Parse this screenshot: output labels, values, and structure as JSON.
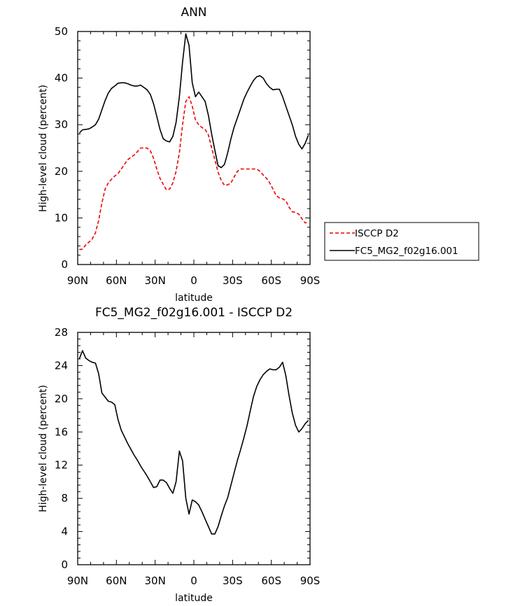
{
  "chart_data": [
    {
      "type": "line",
      "title": "ANN",
      "xlabel": "latitude",
      "ylabel": "High-level cloud (percent)",
      "xlim": [
        90,
        -90
      ],
      "ylim": [
        0,
        50
      ],
      "xticks": [
        90,
        60,
        30,
        0,
        -30,
        -60,
        -90
      ],
      "xtick_labels": [
        "90N",
        "60N",
        "30N",
        "0",
        "30S",
        "60S",
        "90S"
      ],
      "yticks": [
        0,
        10,
        20,
        30,
        40,
        50
      ],
      "ytick_labels": [
        "0",
        "10",
        "20",
        "30",
        "40",
        "50"
      ],
      "legend": "right",
      "series": [
        {
          "name": "ISCCP D2",
          "color": "#ee0000",
          "dash": "dashed",
          "x": [
            88.75,
            86.25,
            83.75,
            81.25,
            78.75,
            76.25,
            73.75,
            71.25,
            68.75,
            66.25,
            63.75,
            61.25,
            58.75,
            56.25,
            53.75,
            51.25,
            48.75,
            46.25,
            43.75,
            41.25,
            38.75,
            36.25,
            33.75,
            31.25,
            28.75,
            26.25,
            23.75,
            21.25,
            18.75,
            16.25,
            13.75,
            11.25,
            8.75,
            6.25,
            3.75,
            1.25,
            -1.25,
            -3.75,
            -6.25,
            -8.75,
            -11.25,
            -13.75,
            -16.25,
            -18.75,
            -21.25,
            -23.75,
            -26.25,
            -28.75,
            -31.25,
            -33.75,
            -36.25,
            -38.75,
            -41.25,
            -43.75,
            -46.25,
            -48.75,
            -51.25,
            -53.75,
            -56.25,
            -58.75,
            -61.25,
            -63.75,
            -66.25,
            -68.75,
            -71.25,
            -73.75,
            -76.25,
            -78.75,
            -81.25,
            -83.75,
            -86.25,
            -88.75
          ],
          "y": [
            3.2,
            3.3,
            4.2,
            4.8,
            5.5,
            6.8,
            9.5,
            13.2,
            16.2,
            17.5,
            18.3,
            19.0,
            19.5,
            20.5,
            21.5,
            22.5,
            23.0,
            23.5,
            24.2,
            25.0,
            25.0,
            25.0,
            24.4,
            22.8,
            20.5,
            18.5,
            17.2,
            16.0,
            16.2,
            17.5,
            20.0,
            24.0,
            30.0,
            35.0,
            36.0,
            34.0,
            31.0,
            30.0,
            29.4,
            29.0,
            27.8,
            25.0,
            22.5,
            19.8,
            18.0,
            17.0,
            17.1,
            17.5,
            18.8,
            20.0,
            20.5,
            20.5,
            20.5,
            20.5,
            20.5,
            20.5,
            20.0,
            19.2,
            18.5,
            17.5,
            16.2,
            14.8,
            14.3,
            14.1,
            13.7,
            12.3,
            11.3,
            11.2,
            10.8,
            9.8,
            8.9,
            9.2
          ]
        },
        {
          "name": "FC5_MG2_f02g16.001",
          "color": "#000000",
          "dash": "solid",
          "x": [
            88.75,
            86.25,
            83.75,
            81.25,
            78.75,
            76.25,
            73.75,
            71.25,
            68.75,
            66.25,
            63.75,
            61.25,
            58.75,
            56.25,
            53.75,
            51.25,
            48.75,
            46.25,
            43.75,
            41.25,
            38.75,
            36.25,
            33.75,
            31.25,
            28.75,
            26.25,
            23.75,
            21.25,
            18.75,
            16.25,
            13.75,
            11.25,
            8.75,
            6.25,
            3.75,
            1.25,
            -1.25,
            -3.75,
            -6.25,
            -8.75,
            -11.25,
            -13.75,
            -16.25,
            -18.75,
            -21.25,
            -23.75,
            -26.25,
            -28.75,
            -31.25,
            -33.75,
            -36.25,
            -38.75,
            -41.25,
            -43.75,
            -46.25,
            -48.75,
            -51.25,
            -53.75,
            -56.25,
            -58.75,
            -61.25,
            -63.75,
            -66.25,
            -68.75,
            -71.25,
            -73.75,
            -76.25,
            -78.75,
            -81.25,
            -83.75,
            -86.25,
            -88.75
          ],
          "y": [
            28.2,
            28.9,
            29.0,
            29.1,
            29.5,
            30.0,
            31.2,
            33.2,
            35.2,
            36.8,
            37.8,
            38.3,
            38.9,
            39.0,
            39.0,
            38.8,
            38.5,
            38.3,
            38.3,
            38.5,
            38.0,
            37.5,
            36.5,
            34.5,
            31.8,
            29.0,
            27.0,
            26.5,
            26.3,
            27.5,
            30.5,
            36.0,
            43.5,
            49.5,
            47.0,
            39.0,
            36.0,
            37.0,
            36.0,
            35.0,
            32.0,
            28.0,
            24.5,
            21.2,
            20.8,
            21.5,
            24.0,
            27.0,
            29.5,
            31.5,
            33.5,
            35.5,
            37.0,
            38.3,
            39.5,
            40.3,
            40.5,
            40.0,
            38.8,
            38.0,
            37.5,
            37.6,
            37.6,
            36.0,
            34.0,
            32.0,
            30.0,
            27.5,
            25.8,
            24.8,
            26.0,
            27.8
          ]
        }
      ]
    },
    {
      "type": "line",
      "title": "FC5_MG2_f02g16.001 - ISCCP D2",
      "xlabel": "latitude",
      "ylabel": "High-level cloud (percent)",
      "xlim": [
        90,
        -90
      ],
      "ylim": [
        0,
        28
      ],
      "xticks": [
        90,
        60,
        30,
        0,
        -30,
        -60,
        -90
      ],
      "xtick_labels": [
        "90N",
        "60N",
        "30N",
        "0",
        "30S",
        "60S",
        "90S"
      ],
      "yticks": [
        0,
        4,
        8,
        12,
        16,
        20,
        24,
        28
      ],
      "ytick_labels": [
        "0",
        "4",
        "8",
        "12",
        "16",
        "20",
        "24",
        "28"
      ],
      "series": [
        {
          "color": "#000000",
          "dash": "solid",
          "x": [
            88.75,
            86.25,
            83.75,
            81.25,
            78.75,
            76.25,
            73.75,
            71.25,
            68.75,
            66.25,
            63.75,
            61.25,
            58.75,
            56.25,
            53.75,
            51.25,
            48.75,
            46.25,
            43.75,
            41.25,
            38.75,
            36.25,
            33.75,
            31.25,
            28.75,
            26.25,
            23.75,
            21.25,
            18.75,
            16.25,
            13.75,
            11.25,
            8.75,
            6.25,
            3.75,
            1.25,
            -1.25,
            -3.75,
            -6.25,
            -8.75,
            -11.25,
            -13.75,
            -16.25,
            -18.75,
            -21.25,
            -23.75,
            -26.25,
            -28.75,
            -31.25,
            -33.75,
            -36.25,
            -38.75,
            -41.25,
            -43.75,
            -46.25,
            -48.75,
            -51.25,
            -53.75,
            -56.25,
            -58.75,
            -61.25,
            -63.75,
            -66.25,
            -68.75,
            -71.25,
            -73.75,
            -76.25,
            -78.75,
            -81.25,
            -83.75,
            -86.25,
            -88.75
          ],
          "y": [
            24.8,
            25.8,
            24.9,
            24.6,
            24.4,
            24.3,
            23.0,
            20.7,
            20.2,
            19.7,
            19.6,
            19.3,
            17.5,
            16.2,
            15.4,
            14.6,
            13.9,
            13.2,
            12.6,
            11.9,
            11.3,
            10.7,
            10.0,
            9.3,
            9.4,
            10.2,
            10.2,
            9.9,
            9.2,
            8.6,
            10.0,
            13.7,
            12.5,
            8.0,
            6.1,
            7.8,
            7.6,
            7.2,
            6.4,
            5.5,
            4.6,
            3.7,
            3.7,
            4.6,
            5.9,
            7.1,
            8.1,
            9.6,
            11.1,
            12.6,
            13.9,
            15.3,
            16.8,
            18.6,
            20.3,
            21.5,
            22.3,
            22.9,
            23.3,
            23.6,
            23.5,
            23.5,
            23.8,
            24.4,
            22.8,
            20.4,
            18.3,
            16.8,
            16.0,
            16.4,
            17.0,
            17.4
          ]
        }
      ]
    }
  ]
}
